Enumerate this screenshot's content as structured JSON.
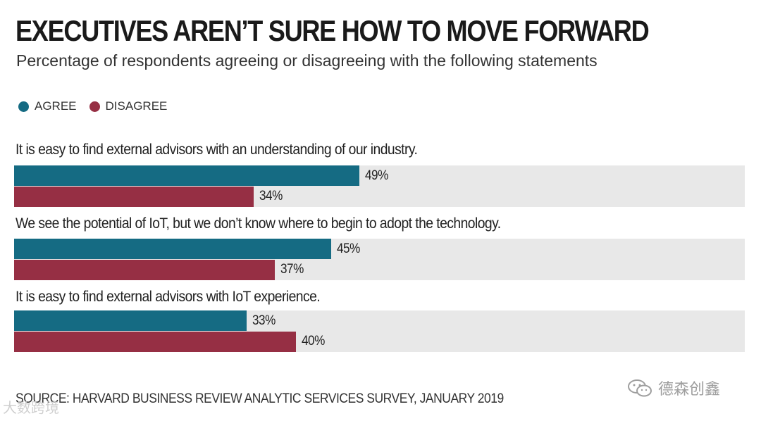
{
  "title": "EXECUTIVES AREN’T SURE HOW TO MOVE FORWARD",
  "subtitle": "Percentage of respondents agreeing or disagreeing with the following statements",
  "source": "SOURCE: HARVARD BUSINESS REVIEW ANALYTIC SERVICES SURVEY, JANUARY 2019",
  "watermarks": {
    "left": "大数跨境",
    "right": "德森创鑫"
  },
  "colors": {
    "agree": "#156b83",
    "disagree": "#962f44",
    "track": "#e8e8e8"
  },
  "chart_data": {
    "type": "bar",
    "orientation": "horizontal",
    "title": "EXECUTIVES AREN’T SURE HOW TO MOVE FORWARD",
    "subtitle": "Percentage of respondents agreeing or disagreeing with the following statements",
    "legend_position": "top-left",
    "xlim": [
      0,
      100
    ],
    "unit": "%",
    "categories": [
      "It is easy to find external advisors with an understanding of our industry.",
      "We see the potential of IoT, but we don’t know where to begin to adopt the technology.",
      "It is easy to find external advisors with IoT experience."
    ],
    "series": [
      {
        "name": "AGREE",
        "color": "#156b83",
        "values": [
          49,
          45,
          33
        ],
        "labels": [
          "49%",
          "45%",
          "33%"
        ]
      },
      {
        "name": "DISAGREE",
        "color": "#962f44",
        "values": [
          34,
          37,
          40
        ],
        "labels": [
          "34%",
          "37%",
          "40%"
        ]
      }
    ]
  }
}
